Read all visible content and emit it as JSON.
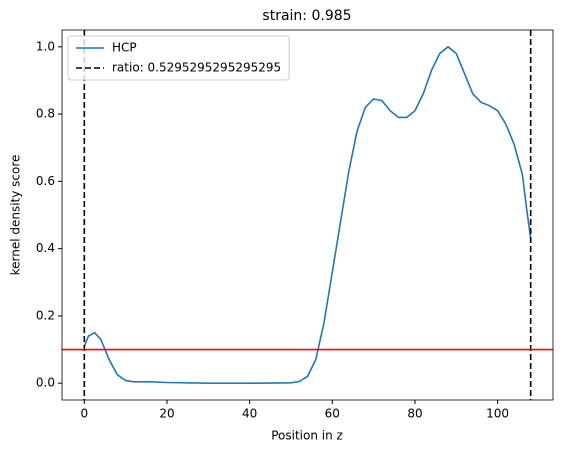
{
  "chart_data": {
    "type": "line",
    "title": "strain: 0.985",
    "x_label": "Position in z",
    "y_label": "kernel density score",
    "x": [
      0,
      1,
      2.5,
      4,
      6,
      8,
      10,
      12,
      16,
      20,
      30,
      40,
      50,
      52,
      54,
      56,
      58,
      60,
      62,
      64,
      66,
      68,
      70,
      72,
      74,
      76,
      78,
      80,
      82,
      84,
      86,
      88,
      90,
      92,
      94,
      96,
      98,
      100,
      102,
      104,
      106,
      107,
      108
    ],
    "series": [
      {
        "name": "HCP",
        "color": "#1f77b4",
        "values": [
          0.11,
          0.14,
          0.15,
          0.13,
          0.07,
          0.025,
          0.008,
          0.004,
          0.004,
          0.002,
          0.0,
          0.0,
          0.001,
          0.005,
          0.02,
          0.07,
          0.18,
          0.33,
          0.48,
          0.63,
          0.75,
          0.82,
          0.845,
          0.84,
          0.81,
          0.79,
          0.79,
          0.81,
          0.86,
          0.93,
          0.98,
          1.0,
          0.98,
          0.92,
          0.86,
          0.835,
          0.825,
          0.81,
          0.77,
          0.71,
          0.62,
          0.52,
          0.43
        ]
      }
    ],
    "vlines": {
      "name": "ratio: 0.5295295295295295",
      "color": "#000000",
      "values": [
        0,
        108
      ]
    },
    "hline": {
      "value": 0.1,
      "color": "#ff0000"
    },
    "xlim": [
      -5.4,
      113.4
    ],
    "ylim": [
      -0.05,
      1.05
    ],
    "xticks": [
      0,
      20,
      40,
      60,
      80,
      100
    ],
    "yticks": [
      {
        "value": 0,
        "label": "0.0"
      },
      {
        "value": 0.2,
        "label": "0.2"
      },
      {
        "value": 0.4,
        "label": "0.4"
      },
      {
        "value": 0.6,
        "label": "0.6"
      },
      {
        "value": 0.8,
        "label": "0.8"
      },
      {
        "value": 1,
        "label": "1.0"
      }
    ],
    "legend": "upper left",
    "grid": false
  }
}
